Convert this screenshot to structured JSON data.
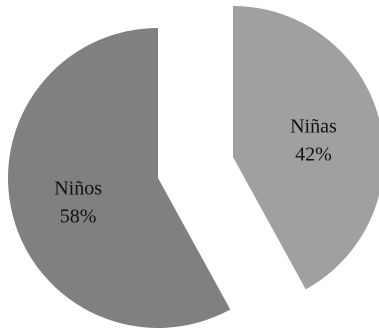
{
  "chart_data": {
    "type": "pie",
    "exploded": true,
    "legend": "none",
    "slices": [
      {
        "label": "Niñas",
        "value": 42,
        "value_label": "42%",
        "color": "#a0a0a0"
      },
      {
        "label": "Niños",
        "value": 58,
        "value_label": "58%",
        "color": "#808080"
      }
    ]
  }
}
